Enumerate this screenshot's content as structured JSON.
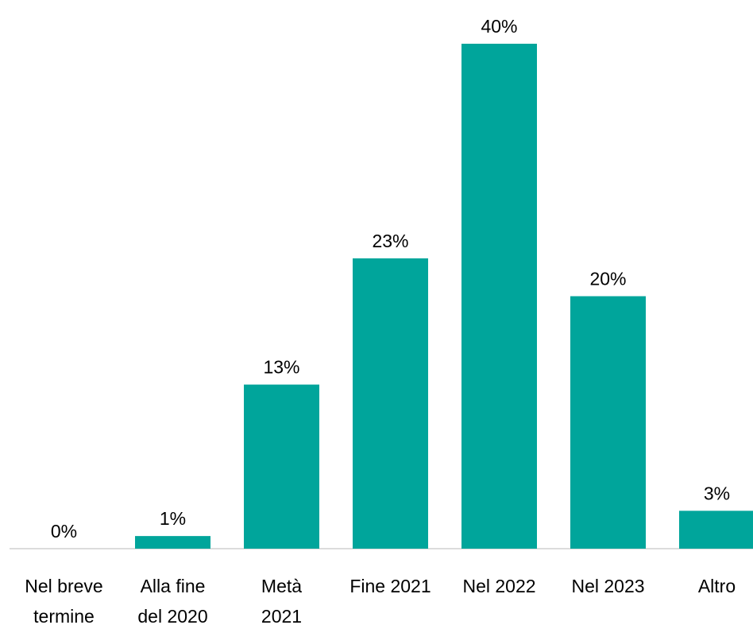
{
  "chart_data": {
    "type": "bar",
    "categories": [
      "Nel breve\ntermine",
      "Alla fine\ndel 2020",
      "Metà\n2021",
      "Fine 2021",
      "Nel 2022",
      "Nel 2023",
      "Altro"
    ],
    "values": [
      0,
      1,
      13,
      23,
      40,
      20,
      3
    ],
    "value_labels": [
      "0%",
      "1%",
      "13%",
      "23%",
      "40%",
      "20%",
      "3%"
    ],
    "color": "#00a59b",
    "ylim": [
      0,
      40
    ]
  }
}
